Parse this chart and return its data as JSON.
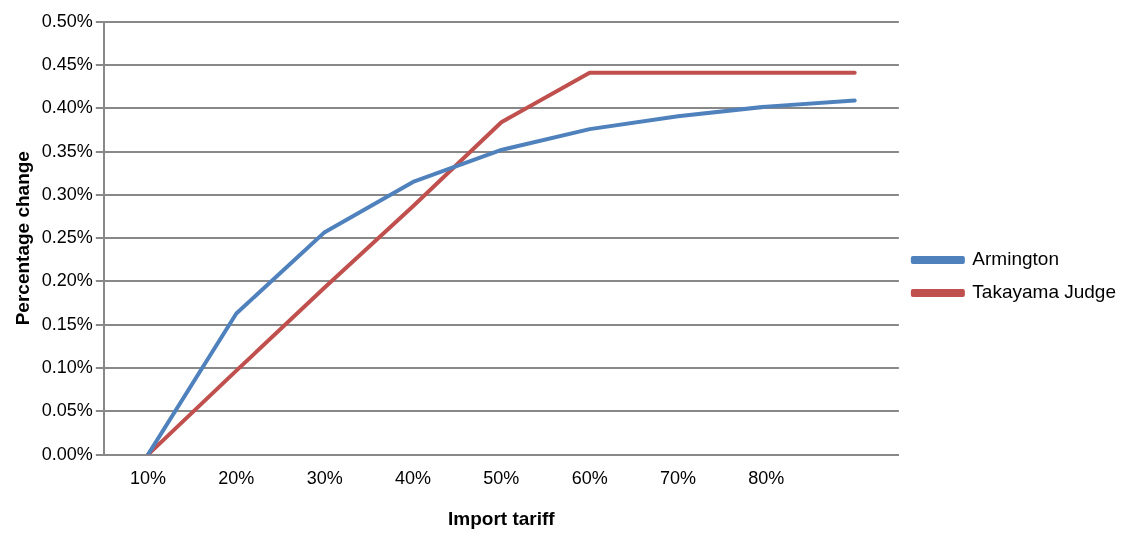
{
  "chart_data": {
    "type": "line",
    "xlabel": "Import tariff",
    "ylabel": "Percentage change",
    "categories": [
      "10%",
      "20%",
      "30%",
      "40%",
      "50%",
      "60%",
      "70%",
      "80%",
      null
    ],
    "series": [
      {
        "name": "Armington",
        "color": "#4f81bd",
        "values": [
          0,
          0.163,
          0.257,
          0.315,
          0.352,
          0.376,
          0.391,
          0.402,
          0.409
        ]
      },
      {
        "name": "Takayama Judge",
        "color": "#c0504d",
        "values": [
          0,
          0.097,
          0.193,
          0.287,
          0.384,
          0.441,
          0.441,
          0.441,
          0.441
        ]
      }
    ],
    "ylim": [
      0,
      0.5
    ],
    "yticks": [
      {
        "value": 0,
        "label": "0.00%"
      },
      {
        "value": 0.05,
        "label": "0.05%"
      },
      {
        "value": 0.1,
        "label": "0.10%"
      },
      {
        "value": 0.15,
        "label": "0.15%"
      },
      {
        "value": 0.2,
        "label": "0.20%"
      },
      {
        "value": 0.25,
        "label": "0.25%"
      },
      {
        "value": 0.3,
        "label": "0.30%"
      },
      {
        "value": 0.35,
        "label": "0.35%"
      },
      {
        "value": 0.4,
        "label": "0.40%"
      },
      {
        "value": 0.45,
        "label": "0.45%"
      },
      {
        "value": 0.5,
        "label": "0.50%"
      }
    ],
    "grid": "y",
    "legend": "right",
    "marker": "none",
    "line_style": "solid"
  }
}
